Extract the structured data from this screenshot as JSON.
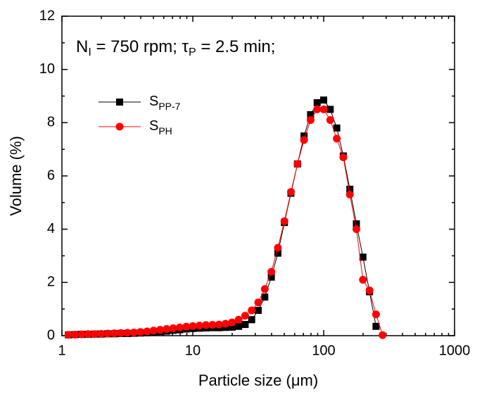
{
  "chart_data": {
    "type": "line",
    "annotation": [
      {
        "text": "N",
        "sub": "I"
      },
      {
        "text": " = 750 rpm; τ",
        "sub": "P"
      },
      {
        "text": " = 2.5 min;"
      }
    ],
    "x_label": "Particle size (μm)",
    "y_label": "Volume (%)",
    "x_log": true,
    "legend_position": "upper left",
    "xlim": [
      1,
      1000
    ],
    "xticks": [
      1,
      10,
      100,
      1000
    ],
    "ylim": [
      0,
      12
    ],
    "yticks": [
      0,
      2,
      4,
      6,
      8,
      10,
      12
    ],
    "x": [
      1.122,
      1.259,
      1.413,
      1.585,
      1.778,
      1.995,
      2.239,
      2.512,
      2.818,
      3.162,
      3.548,
      3.981,
      4.467,
      5.012,
      5.623,
      6.31,
      7.079,
      7.943,
      8.913,
      10,
      11.22,
      12.59,
      14.13,
      15.85,
      17.78,
      19.95,
      22.39,
      25.12,
      28.18,
      31.62,
      35.48,
      39.81,
      44.67,
      50.12,
      56.23,
      63.1,
      70.79,
      79.43,
      89.13,
      100,
      112.2,
      125.9,
      141.3,
      158.5,
      177.8,
      199.5,
      223.9,
      251.2,
      281.8
    ],
    "series": [
      {
        "name": "S",
        "name_subscript": "PP-7",
        "color": "#000000",
        "marker": "square",
        "values": [
          0.03,
          0.04,
          0.05,
          0.05,
          0.06,
          0.06,
          0.07,
          0.07,
          0.08,
          0.08,
          0.09,
          0.1,
          0.11,
          0.13,
          0.15,
          0.17,
          0.2,
          0.22,
          0.25,
          0.27,
          0.28,
          0.29,
          0.3,
          0.3,
          0.31,
          0.32,
          0.35,
          0.42,
          0.6,
          0.95,
          1.45,
          2.2,
          3.1,
          4.25,
          5.35,
          6.45,
          7.5,
          8.3,
          8.75,
          8.85,
          8.5,
          7.8,
          6.75,
          5.5,
          4.2,
          2.95,
          1.65,
          0.35,
          null
        ]
      },
      {
        "name": "S",
        "name_subscript": "PH",
        "color": "#ff0000",
        "marker": "circle",
        "values": [
          0.03,
          0.04,
          0.05,
          0.06,
          0.06,
          0.07,
          0.08,
          0.09,
          0.1,
          0.11,
          0.12,
          0.14,
          0.16,
          0.19,
          0.22,
          0.25,
          0.28,
          0.31,
          0.34,
          0.36,
          0.38,
          0.4,
          0.41,
          0.42,
          0.45,
          0.5,
          0.6,
          0.75,
          0.95,
          1.25,
          1.75,
          2.4,
          3.3,
          4.3,
          5.4,
          6.45,
          7.35,
          8.1,
          8.5,
          8.5,
          8.1,
          7.4,
          6.7,
          5.3,
          4.0,
          2.1,
          1.7,
          0.8,
          0.02
        ]
      }
    ]
  }
}
